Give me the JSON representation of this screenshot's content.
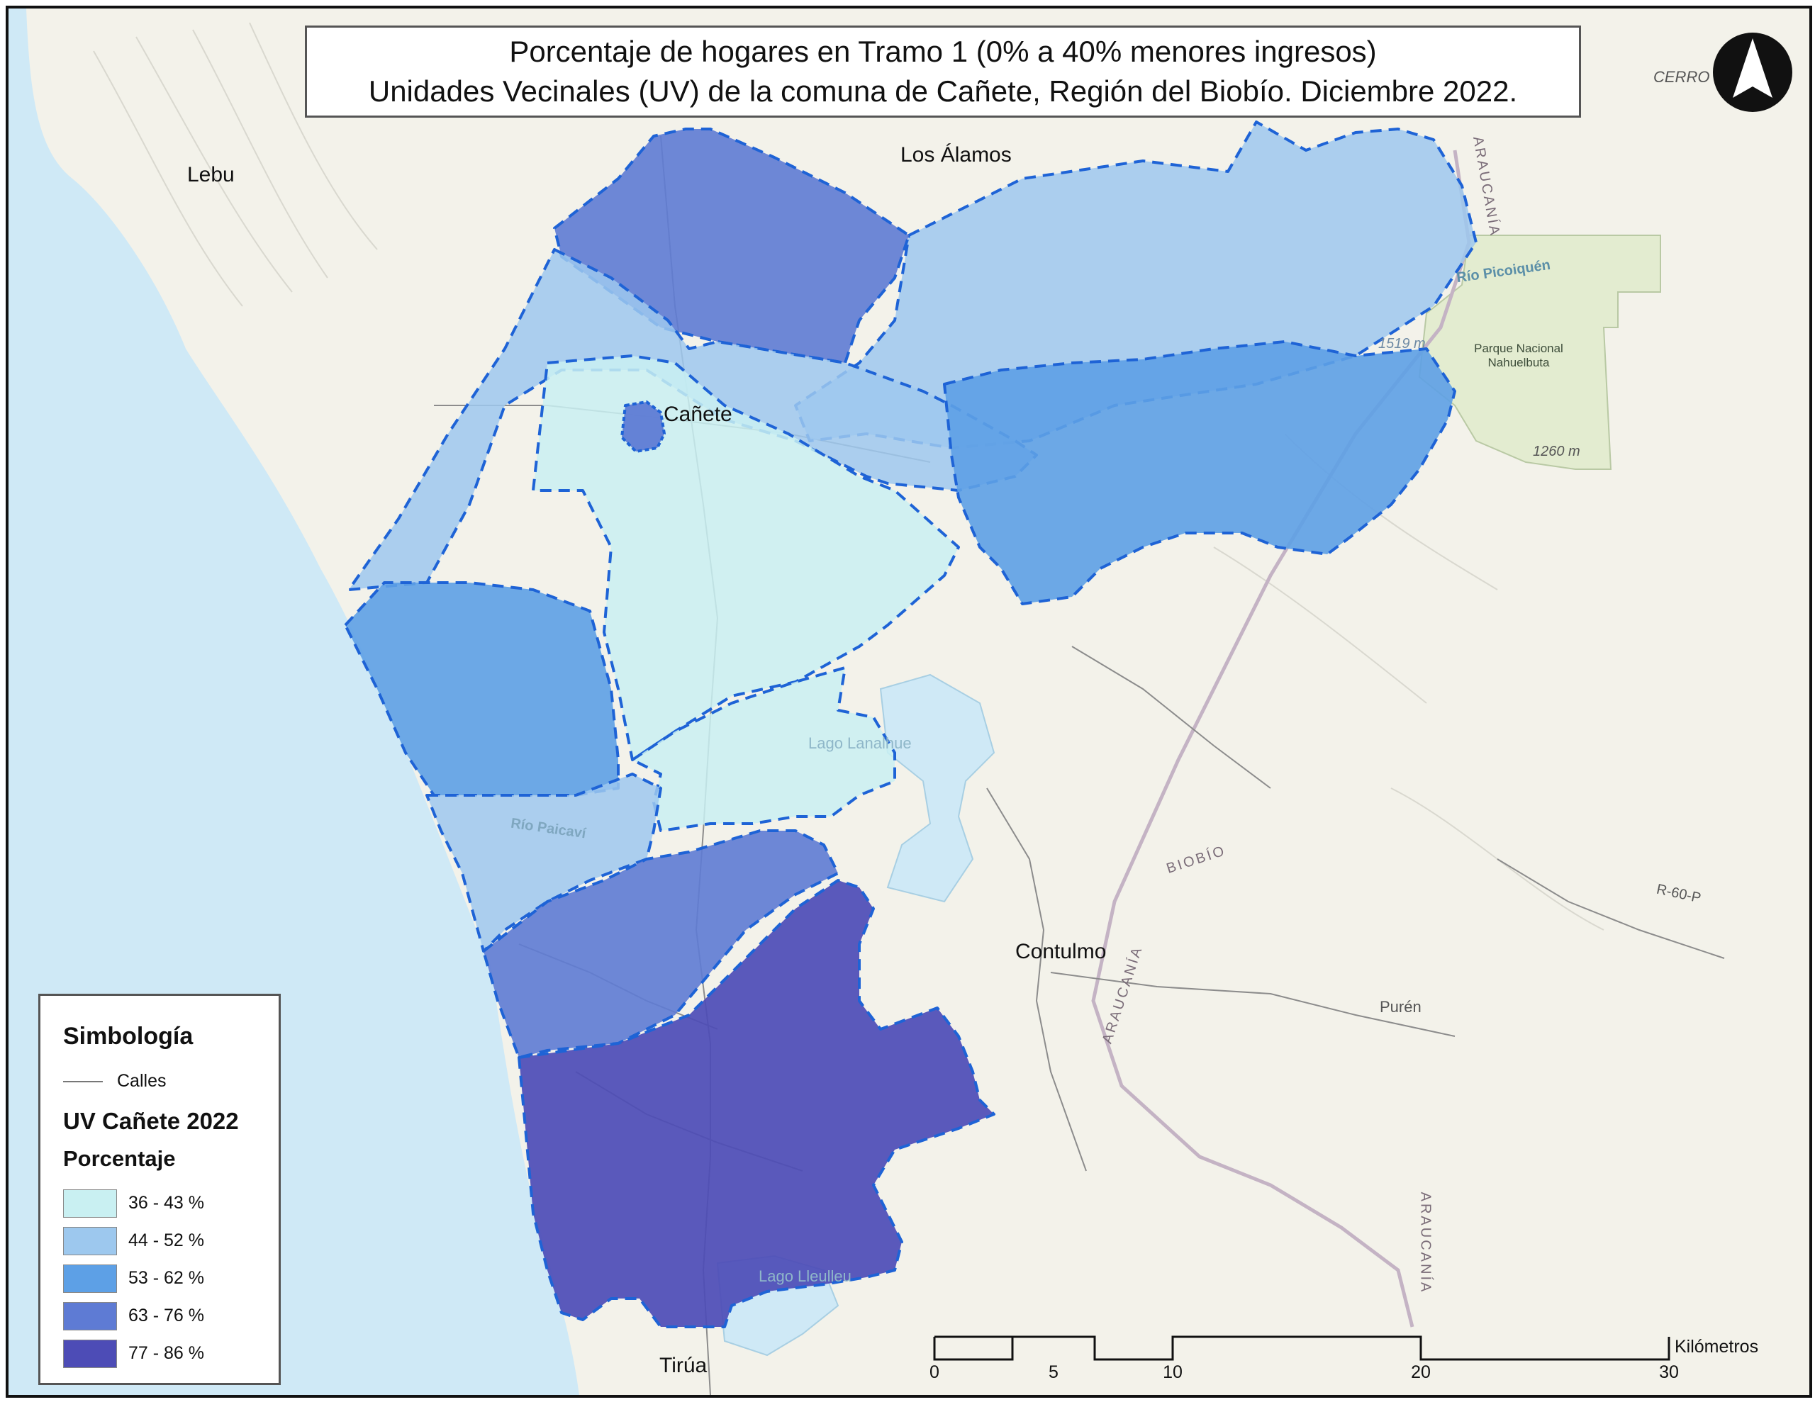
{
  "title": {
    "line1": "Porcentaje de hogares en Tramo 1 (0% a 40% menores ingresos)",
    "line2": "Unidades Vecinales (UV) de la comuna de Cañete, Región del Biobío. Diciembre 2022."
  },
  "places": {
    "lebu": "Lebu",
    "los_alamos": "Los Álamos",
    "canete": "Cañete",
    "contulmo": "Contulmo",
    "purén": "Purén",
    "tirua": "Tirúa",
    "cerro": "CERRO",
    "lago_lanalhue": "Lago Lanalhue",
    "lago_lleulleu": "Lago Lleulleu",
    "rio_picoiquen": "Río Picoiquén",
    "rio_paicavi": "Río Paicaví",
    "park": "Parque Nacional Nahuelbuta",
    "elev_1519": "1519 m",
    "elev_1260": "1260 m",
    "route": "R-60-P",
    "region_araucania": "ARAUCANÍA",
    "region_biobio": "BIOBÍO"
  },
  "legend": {
    "title": "Simbología",
    "roads_label": "Calles",
    "layer_title": "UV Cañete 2022",
    "field": "Porcentaje",
    "classes": [
      {
        "label": "36 - 43 %",
        "color": "#c9f0f2"
      },
      {
        "label": "44 - 52 %",
        "color": "#9dc8ee"
      },
      {
        "label": "53 - 62 %",
        "color": "#5da0e6"
      },
      {
        "label": "63 - 76 %",
        "color": "#5e7bd4"
      },
      {
        "label": "77 - 86 %",
        "color": "#4d4cb6"
      }
    ]
  },
  "scale": {
    "unit": "Kilómetros",
    "ticks": [
      "0",
      "5",
      "10",
      "20",
      "30"
    ]
  },
  "colors": {
    "sea": "#cfe9f6",
    "land": "#f3f2ea",
    "boundary_dash": "#1e63d6",
    "park": "#e3ecd0"
  }
}
